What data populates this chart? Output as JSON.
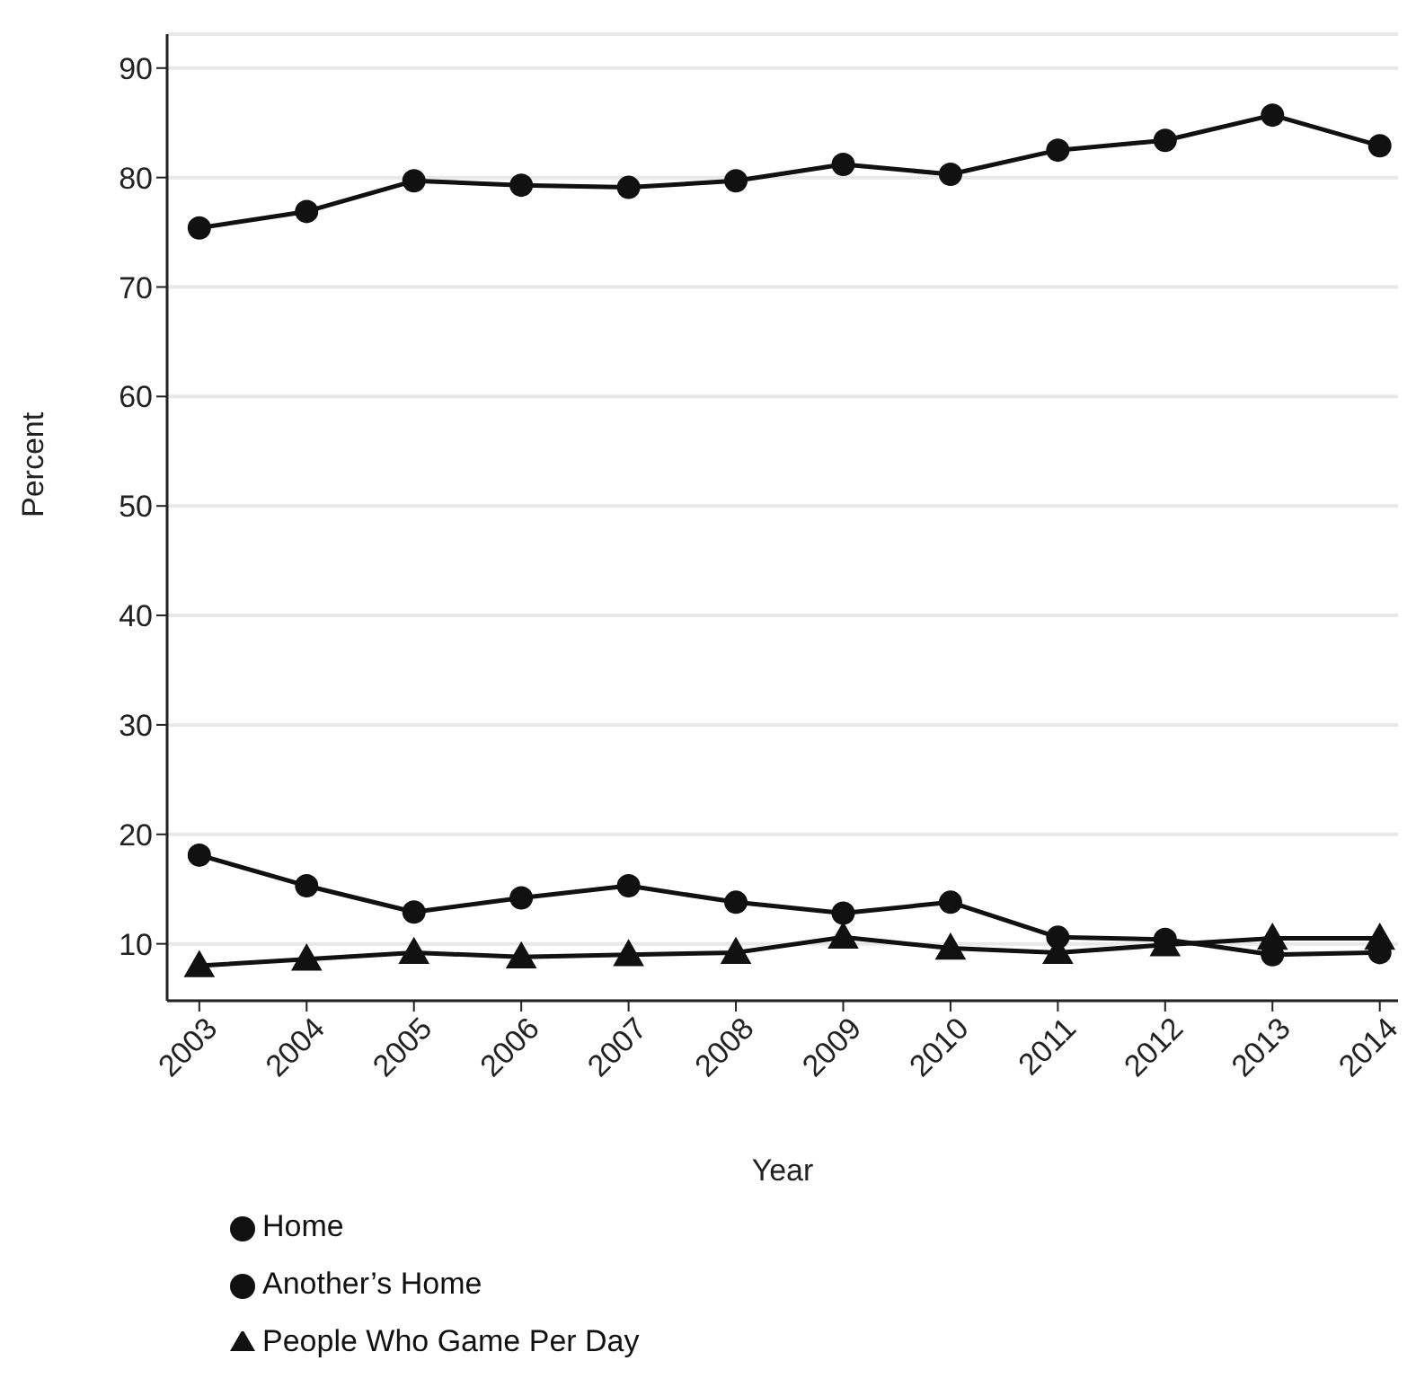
{
  "chart_data": {
    "type": "line",
    "xlabel": "Year",
    "ylabel": "Percent",
    "categories": [
      "2003",
      "2004",
      "2005",
      "2006",
      "2007",
      "2008",
      "2009",
      "2010",
      "2011",
      "2012",
      "2013",
      "2014"
    ],
    "series": [
      {
        "name": "Home",
        "color": "#111111",
        "marker": "circle",
        "values": [
          75.4,
          76.9,
          79.7,
          79.3,
          79.1,
          79.7,
          81.2,
          80.3,
          82.5,
          83.4,
          85.7,
          82.9
        ]
      },
      {
        "name": "Another’s Home",
        "color": "#111111",
        "marker": "circle",
        "values": [
          18.1,
          15.3,
          12.9,
          14.2,
          15.3,
          13.8,
          12.8,
          13.8,
          10.6,
          10.4,
          9.0,
          9.2
        ]
      },
      {
        "name": "People Who Game Per Day",
        "color": "#111111",
        "marker": "triangle",
        "values": [
          8.0,
          8.6,
          9.2,
          8.8,
          9.0,
          9.2,
          10.6,
          9.6,
          9.2,
          9.9,
          10.5,
          10.5
        ]
      }
    ],
    "ylim": [
      4.8,
      93.1
    ],
    "yticks": [
      10,
      20,
      30,
      40,
      50,
      60,
      70,
      80,
      90
    ],
    "grid": "y",
    "legend": "bottom",
    "line_style": "solid"
  }
}
